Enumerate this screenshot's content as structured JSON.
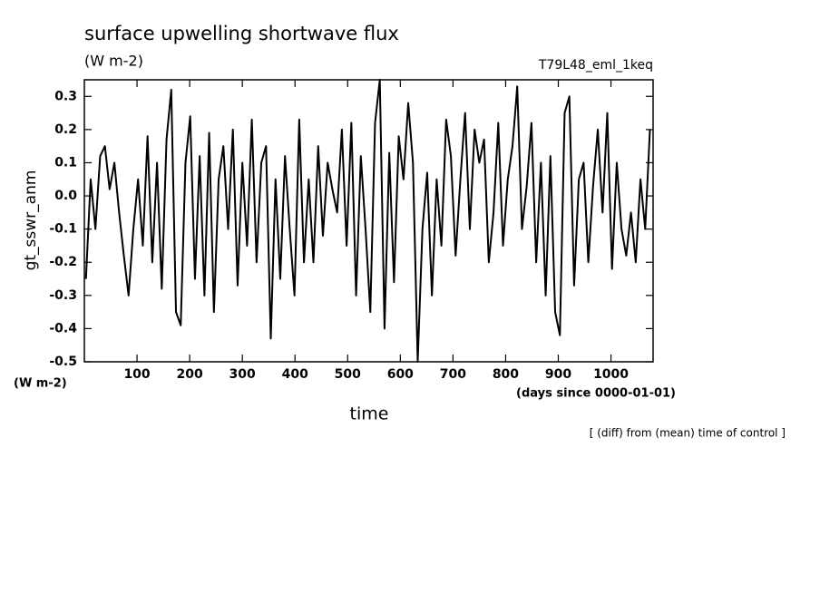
{
  "chart_data": {
    "type": "line",
    "title": "surface upwelling shortwave flux",
    "subtitle": "(W m-2)",
    "run_label": "T79L48_eml_1keq",
    "y_axis_label": "gt_sswr_anm",
    "y_unit_label": "(W m-2)",
    "x_axis_label": "time",
    "x_unit_label": "(days since 0000-01-01)",
    "note": "[ (diff) from (mean) time of control ]",
    "x": [
      3,
      12,
      21,
      30,
      39,
      48,
      57,
      66,
      75,
      84,
      93,
      102,
      111,
      120,
      129,
      138,
      147,
      156,
      165,
      174,
      183,
      192,
      201,
      210,
      219,
      228,
      237,
      246,
      255,
      264,
      273,
      282,
      291,
      300,
      309,
      318,
      327,
      336,
      345,
      354,
      363,
      372,
      381,
      390,
      399,
      408,
      417,
      426,
      435,
      444,
      453,
      462,
      471,
      480,
      489,
      498,
      507,
      516,
      525,
      534,
      543,
      552,
      561,
      570,
      579,
      588,
      597,
      606,
      615,
      624,
      633,
      642,
      651,
      660,
      669,
      678,
      687,
      696,
      705,
      714,
      723,
      732,
      741,
      750,
      759,
      768,
      777,
      786,
      795,
      804,
      813,
      822,
      831,
      840,
      849,
      858,
      867,
      876,
      885,
      894,
      903,
      912,
      921,
      930,
      939,
      948,
      957,
      966,
      975,
      984,
      993,
      1002,
      1011,
      1020,
      1029,
      1038,
      1047,
      1056,
      1065,
      1074
    ],
    "series": [
      {
        "name": "gt_sswr_anm",
        "color": "#000000",
        "values": [
          -0.25,
          0.05,
          -0.1,
          0.12,
          0.15,
          0.02,
          0.1,
          -0.05,
          -0.18,
          -0.3,
          -0.1,
          0.05,
          -0.15,
          0.18,
          -0.2,
          0.1,
          -0.28,
          0.17,
          0.32,
          -0.35,
          -0.39,
          0.1,
          0.24,
          -0.25,
          0.12,
          -0.3,
          0.19,
          -0.35,
          0.05,
          0.15,
          -0.1,
          0.2,
          -0.27,
          0.1,
          -0.15,
          0.23,
          -0.2,
          0.1,
          0.15,
          -0.43,
          0.05,
          -0.25,
          0.12,
          -0.1,
          -0.3,
          0.23,
          -0.2,
          0.05,
          -0.2,
          0.15,
          -0.12,
          0.1,
          0.02,
          -0.05,
          0.2,
          -0.15,
          0.22,
          -0.3,
          0.12,
          -0.1,
          -0.35,
          0.22,
          0.35,
          -0.4,
          0.13,
          -0.26,
          0.18,
          0.05,
          0.28,
          0.1,
          -0.5,
          -0.1,
          0.07,
          -0.3,
          0.05,
          -0.15,
          0.23,
          0.12,
          -0.18,
          0.05,
          0.25,
          -0.1,
          0.2,
          0.1,
          0.17,
          -0.2,
          -0.05,
          0.22,
          -0.15,
          0.05,
          0.15,
          0.33,
          -0.1,
          0.03,
          0.22,
          -0.2,
          0.1,
          -0.3,
          0.12,
          -0.35,
          -0.42,
          0.25,
          0.3,
          -0.27,
          0.05,
          0.1,
          -0.2,
          0.03,
          0.2,
          -0.05,
          0.25,
          -0.22,
          0.1,
          -0.1,
          -0.18,
          -0.05,
          -0.2,
          0.05,
          -0.1,
          0.2
        ]
      }
    ],
    "xlim": [
      0,
      1080
    ],
    "xticks": [
      100,
      200,
      300,
      400,
      500,
      600,
      700,
      800,
      900,
      1000
    ],
    "ylim": [
      -0.5,
      0.35
    ],
    "yticks": [
      -0.5,
      -0.4,
      -0.3,
      -0.2,
      -0.1,
      {
        "value": 0,
        "label": "0.0"
      },
      0.1,
      0.2,
      0.3
    ],
    "grid": false
  }
}
